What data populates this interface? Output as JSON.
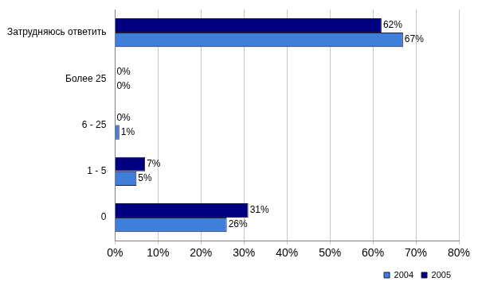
{
  "chart_data": {
    "type": "bar",
    "orientation": "horizontal",
    "categories": [
      "Затрудняюсь ответить",
      "Более 25",
      "6 - 25",
      "1 - 5",
      "0"
    ],
    "series": [
      {
        "name": "2004",
        "color": "#3f7fd9",
        "values": [
          67,
          0,
          1,
          5,
          26
        ],
        "value_labels": [
          "67%",
          "0%",
          "1%",
          "5%",
          "26%"
        ]
      },
      {
        "name": "2005",
        "color": "#000080",
        "values": [
          62,
          0,
          0,
          7,
          31
        ],
        "value_labels": [
          "62%",
          "0%",
          "0%",
          "7%",
          "31%"
        ]
      }
    ],
    "xlim": [
      0,
      80
    ],
    "xticks": [
      {
        "value": 0,
        "label": "0%"
      },
      {
        "value": 10,
        "label": "10%"
      },
      {
        "value": 20,
        "label": "20%"
      },
      {
        "value": 30,
        "label": "30%"
      },
      {
        "value": 40,
        "label": "40%"
      },
      {
        "value": 50,
        "label": "50%"
      },
      {
        "value": 60,
        "label": "60%"
      },
      {
        "value": 70,
        "label": "70%"
      },
      {
        "value": 80,
        "label": "80%"
      }
    ],
    "grid": true,
    "legend": "bottom",
    "data_labels": true
  }
}
